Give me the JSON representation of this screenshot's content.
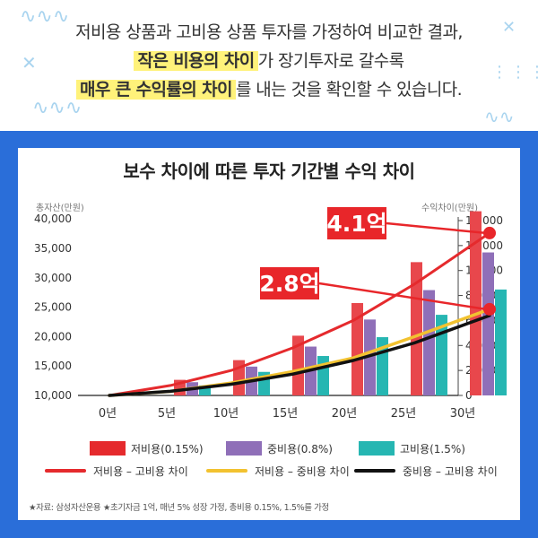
{
  "header": {
    "line1": "저비용 상품과 고비용 상품 투자를 가정하여 비교한 결과,",
    "line2_highlight": "작은 비용의 차이",
    "line2_rest": "가 장기투자로 갈수록",
    "line3_highlight": "매우 큰 수익률의 차이",
    "line3_rest": "를 내는 것을 확인할 수 있습니다."
  },
  "colors": {
    "background_blue": "#2a6ed9",
    "highlight_yellow": "#fff27a",
    "low_cost": "#e8474c",
    "mid_cost": "#8f6fb8",
    "high_cost": "#26b6b2",
    "diff_low_high": "#e52a2d",
    "diff_low_mid": "#f2c230",
    "diff_mid_high": "#111111",
    "callout": "#e8262a"
  },
  "chart_data": {
    "type": "bar",
    "title": "보수 차이에 따른 투자 기간별 수익 차이",
    "left_axis_label": "총자산(만원)",
    "right_axis_label": "수익차이(만원)",
    "categories": [
      "0년",
      "5년",
      "10년",
      "15년",
      "20년",
      "25년",
      "30년"
    ],
    "left_ylim": [
      10000,
      42000
    ],
    "left_ticks": [
      "10,000",
      "15,000",
      "20,000",
      "25,000",
      "30,000",
      "35,000",
      "40,000"
    ],
    "right_ylim": [
      0,
      14000
    ],
    "right_ticks": [
      "0",
      "2,000",
      "4,000",
      "6,000",
      "8,000",
      "10,000",
      "12,000",
      "14,000"
    ],
    "bar_series": [
      {
        "name": "저비용(0.15%)",
        "values": [
          10000,
          12650,
          16000,
          20150,
          25700,
          32650,
          41300
        ]
      },
      {
        "name": "중비용(0.8%)",
        "values": [
          10000,
          12250,
          14900,
          18300,
          22900,
          27900,
          34300
        ]
      },
      {
        "name": "고비용(1.5%)",
        "values": [
          10000,
          11700,
          14000,
          16700,
          19900,
          23700,
          28000
        ]
      }
    ],
    "line_series": [
      {
        "name": "저비용 – 고비용 차이",
        "values": [
          0,
          800,
          2000,
          3800,
          6000,
          8900,
          13000
        ]
      },
      {
        "name": "저비용 – 중비용 차이",
        "values": [
          0,
          320,
          1000,
          1900,
          3000,
          4700,
          6900
        ]
      },
      {
        "name": "중비용 – 고비용 차이",
        "values": [
          0,
          330,
          900,
          1700,
          2800,
          4200,
          6400
        ]
      }
    ],
    "callouts": [
      {
        "text": "4.1억"
      },
      {
        "text": "2.8억"
      }
    ],
    "legend_position": "bottom",
    "grid": false
  },
  "source_note": "★자료: 삼성자산운용      ★초기자금 1억, 매년 5% 성장 가정, 총비용 0.15%, 1.5%를 가정"
}
